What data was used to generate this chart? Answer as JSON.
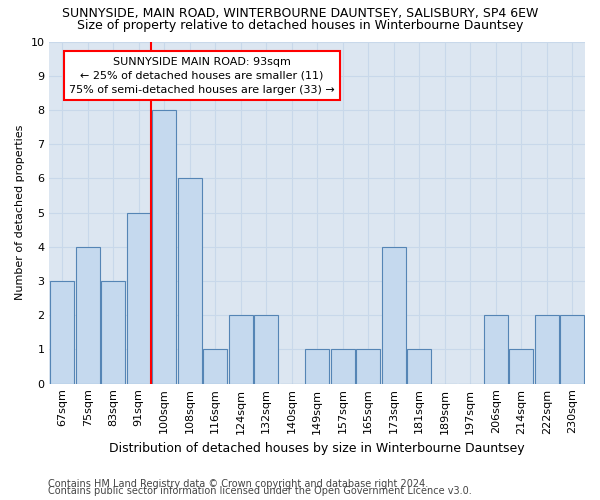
{
  "title1": "SUNNYSIDE, MAIN ROAD, WINTERBOURNE DAUNTSEY, SALISBURY, SP4 6EW",
  "title2": "Size of property relative to detached houses in Winterbourne Dauntsey",
  "xlabel": "Distribution of detached houses by size in Winterbourne Dauntsey",
  "ylabel": "Number of detached properties",
  "footnote1": "Contains HM Land Registry data © Crown copyright and database right 2024.",
  "footnote2": "Contains public sector information licensed under the Open Government Licence v3.0.",
  "categories": [
    "67sqm",
    "75sqm",
    "83sqm",
    "91sqm",
    "100sqm",
    "108sqm",
    "116sqm",
    "124sqm",
    "132sqm",
    "140sqm",
    "149sqm",
    "157sqm",
    "165sqm",
    "173sqm",
    "181sqm",
    "189sqm",
    "197sqm",
    "206sqm",
    "214sqm",
    "222sqm",
    "230sqm"
  ],
  "values": [
    3,
    4,
    3,
    5,
    8,
    6,
    1,
    2,
    2,
    0,
    1,
    1,
    1,
    4,
    1,
    0,
    0,
    2,
    1,
    2,
    2
  ],
  "bar_color": "#c5d9ee",
  "bar_edge_color": "#5585b5",
  "grid_color": "#c8d8ea",
  "background_color": "#dce6f1",
  "annotation_line1": "SUNNYSIDE MAIN ROAD: 93sqm",
  "annotation_line2": "← 25% of detached houses are smaller (11)",
  "annotation_line3": "75% of semi-detached houses are larger (33) →",
  "annotation_box_color": "white",
  "annotation_box_edge": "red",
  "ylim": [
    0,
    10
  ],
  "yticks": [
    0,
    1,
    2,
    3,
    4,
    5,
    6,
    7,
    8,
    9,
    10
  ],
  "title1_fontsize": 9,
  "title2_fontsize": 9,
  "xlabel_fontsize": 9,
  "ylabel_fontsize": 8,
  "tick_fontsize": 8,
  "annot_fontsize": 8,
  "footnote_fontsize": 7
}
